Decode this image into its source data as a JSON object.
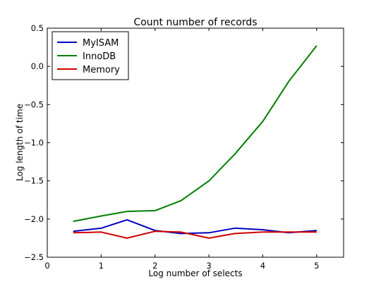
{
  "chart_data": {
    "type": "line",
    "title": "Count number of records",
    "xlabel": "Log number of selects",
    "ylabel": "Log length of time",
    "xlim": [
      0,
      5.5
    ],
    "ylim": [
      -2.5,
      0.5
    ],
    "xticks": [
      0,
      1,
      2,
      3,
      4,
      5
    ],
    "xtick_labels": [
      "0",
      "1",
      "2",
      "3",
      "4",
      "5"
    ],
    "yticks": [
      -2.5,
      -2.0,
      -1.5,
      -1.0,
      -0.5,
      0.0,
      0.5
    ],
    "ytick_labels": [
      "−2.5",
      "−2.0",
      "−1.5",
      "−1.0",
      "−0.5",
      "0.0",
      "0.5"
    ],
    "grid": false,
    "legend_position": "top-left",
    "x": [
      0.48,
      1.0,
      1.48,
      2.0,
      2.48,
      3.0,
      3.48,
      4.0,
      4.48,
      5.0
    ],
    "series": [
      {
        "name": "MyISAM",
        "color": "#0000bf",
        "values": [
          -2.16,
          -2.12,
          -2.01,
          -2.15,
          -2.19,
          -2.18,
          -2.12,
          -2.14,
          -2.18,
          -2.15
        ]
      },
      {
        "name": "InnoDB",
        "color": "#007f00",
        "values": [
          -2.03,
          -1.96,
          -1.9,
          -1.89,
          -1.76,
          -1.5,
          -1.15,
          -0.72,
          -0.2,
          0.27
        ]
      },
      {
        "name": "Memory",
        "color": "#d00000",
        "values": [
          -2.18,
          -2.17,
          -2.25,
          -2.16,
          -2.17,
          -2.25,
          -2.19,
          -2.17,
          -2.17,
          -2.17
        ]
      }
    ]
  }
}
